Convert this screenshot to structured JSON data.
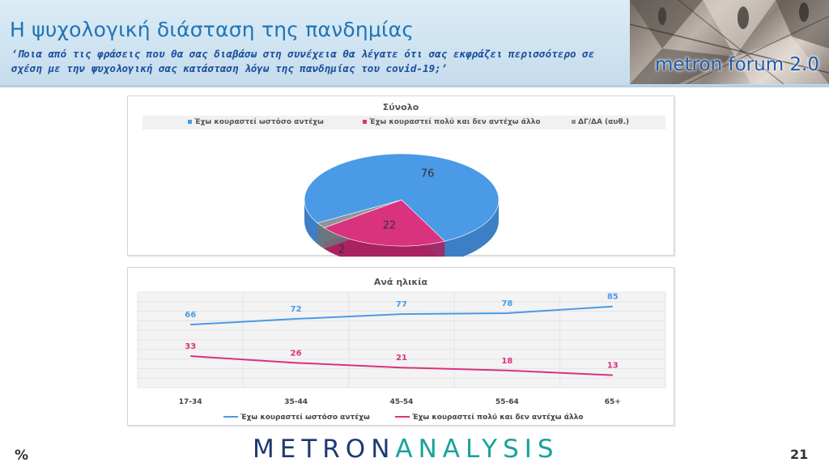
{
  "header": {
    "title": "Η ψυχολογική διάσταση της πανδημίας",
    "question": "‘Ποια από τις φράσεις που θα σας διαβάσω στη συνέχεια θα λέγατε ότι σας εκφράζει περισσότερο σε σχέση με την ψυχολογική σας κατάσταση λόγω της πανδημίας του covid-19;’",
    "brand": "metron forum 2.0"
  },
  "colors": {
    "blue": "#4a9ae6",
    "magenta": "#d9327f",
    "gray": "#8f959c",
    "title": "#1f74b6"
  },
  "chart_data": [
    {
      "type": "pie",
      "title": "Σύνολο",
      "legend_placement": "top",
      "series": [
        {
          "name": "Έχω κουραστεί  ωστόσο αντέχω",
          "value": 76,
          "label": "76"
        },
        {
          "name": "Έχω κουραστεί πολύ και δεν αντέχω άλλο",
          "value": 22,
          "label": "22"
        },
        {
          "name": "ΔΓ/ΔΑ (αυθ.)",
          "value": 2,
          "label": "2"
        }
      ]
    },
    {
      "type": "line",
      "title": "Ανά ηλικία",
      "legend_placement": "bottom",
      "grid": true,
      "categories": [
        "17-34",
        "35-44",
        "45-54",
        "55-64",
        "65+"
      ],
      "series": [
        {
          "name": "Έχω κουραστεί  ωστόσο αντέχω",
          "values": [
            66,
            72,
            77,
            78,
            85
          ],
          "labels": [
            "66",
            "72",
            "77",
            "78",
            "85"
          ]
        },
        {
          "name": "Έχω κουραστεί πολύ και δεν αντέχω άλλο",
          "values": [
            33,
            26,
            21,
            18,
            13
          ],
          "labels": [
            "33",
            "26",
            "21",
            "18",
            "13"
          ]
        }
      ]
    }
  ],
  "footer": {
    "percent": "%",
    "logo_left": "METRON",
    "logo_right": "ANALYSIS",
    "page": "21"
  }
}
